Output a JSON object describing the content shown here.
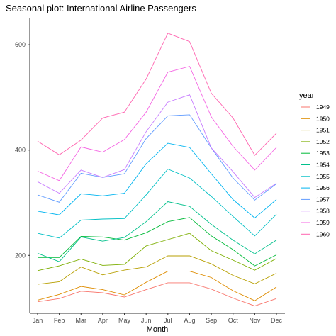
{
  "chart_data": {
    "type": "line",
    "title": "Seasonal plot: International Airline Passengers",
    "xlabel": "Month",
    "ylabel": "",
    "categories": [
      "Jan",
      "Feb",
      "Mar",
      "Apr",
      "May",
      "Jun",
      "Jul",
      "Aug",
      "Sep",
      "Oct",
      "Nov",
      "Dec"
    ],
    "y_ticks": [
      200,
      400,
      600
    ],
    "ylim": [
      90,
      650
    ],
    "grid": false,
    "legend": {
      "title": "year",
      "position": "right"
    },
    "series": [
      {
        "name": "1949",
        "color": "#F8766D",
        "values": [
          112,
          118,
          132,
          129,
          121,
          135,
          148,
          148,
          136,
          119,
          104,
          118
        ]
      },
      {
        "name": "1950",
        "color": "#DE8C00",
        "values": [
          115,
          126,
          141,
          135,
          125,
          149,
          170,
          170,
          158,
          133,
          114,
          140
        ]
      },
      {
        "name": "1951",
        "color": "#B79F00",
        "values": [
          145,
          150,
          178,
          163,
          172,
          178,
          199,
          199,
          184,
          162,
          146,
          166
        ]
      },
      {
        "name": "1952",
        "color": "#7CAE00",
        "values": [
          171,
          180,
          193,
          181,
          183,
          218,
          230,
          242,
          209,
          191,
          172,
          194
        ]
      },
      {
        "name": "1953",
        "color": "#00BA38",
        "values": [
          196,
          196,
          236,
          235,
          229,
          243,
          264,
          272,
          237,
          211,
          180,
          201
        ]
      },
      {
        "name": "1954",
        "color": "#00C08B",
        "values": [
          204,
          188,
          235,
          227,
          234,
          264,
          302,
          293,
          259,
          229,
          203,
          229
        ]
      },
      {
        "name": "1955",
        "color": "#00BFC4",
        "values": [
          242,
          233,
          267,
          269,
          270,
          315,
          364,
          347,
          312,
          274,
          237,
          278
        ]
      },
      {
        "name": "1956",
        "color": "#00B4F0",
        "values": [
          284,
          277,
          317,
          313,
          318,
          374,
          413,
          405,
          355,
          306,
          271,
          306
        ]
      },
      {
        "name": "1957",
        "color": "#619CFF",
        "values": [
          315,
          301,
          356,
          348,
          355,
          422,
          465,
          467,
          404,
          347,
          305,
          336
        ]
      },
      {
        "name": "1958",
        "color": "#C77CFF",
        "values": [
          340,
          318,
          362,
          348,
          363,
          435,
          491,
          505,
          404,
          359,
          310,
          337
        ]
      },
      {
        "name": "1959",
        "color": "#F564E3",
        "values": [
          360,
          342,
          406,
          396,
          420,
          472,
          548,
          559,
          463,
          407,
          362,
          405
        ]
      },
      {
        "name": "1960",
        "color": "#FF64B0",
        "values": [
          417,
          391,
          419,
          461,
          472,
          535,
          622,
          606,
          508,
          461,
          390,
          432
        ]
      }
    ]
  }
}
